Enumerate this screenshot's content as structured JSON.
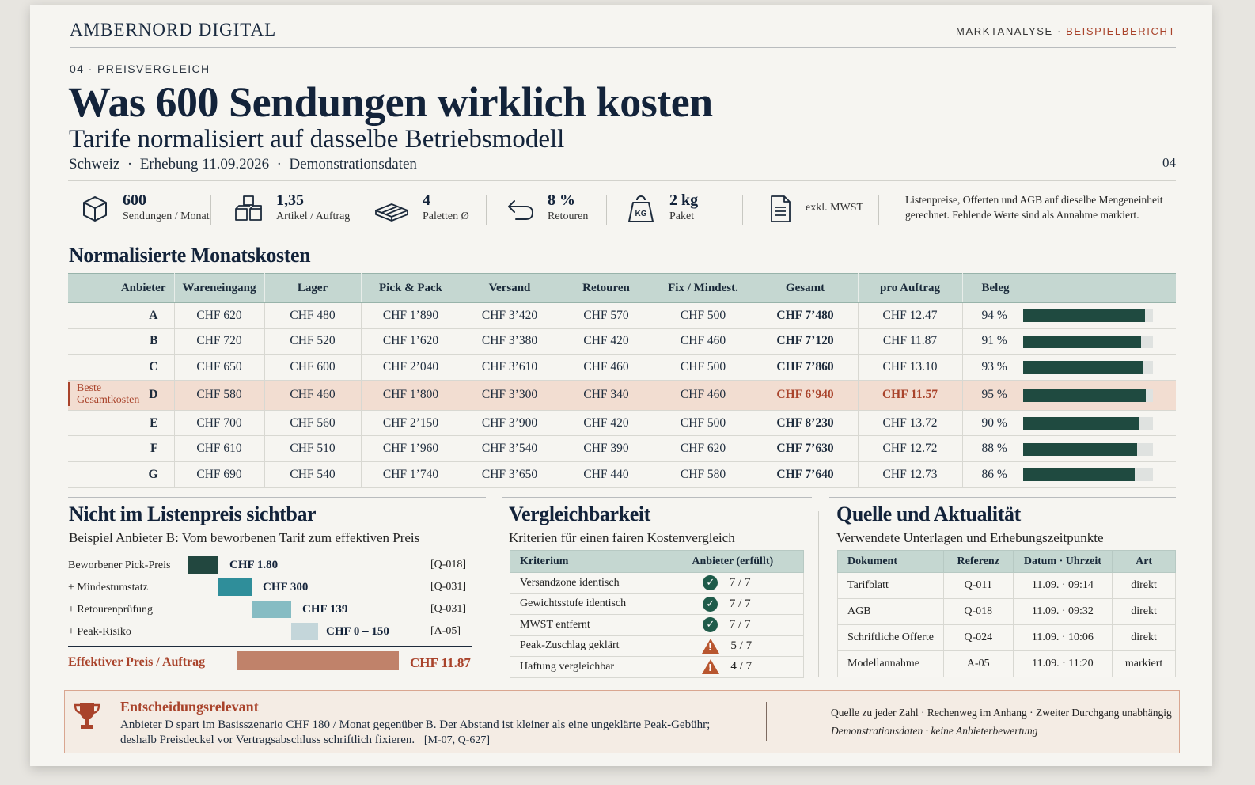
{
  "header": {
    "brand": "AMBERNORD DIGITAL",
    "topright_a": "MARKTANALYSE ·",
    "topright_b": "BEISPIELBERICHT",
    "kicker": "04 · PREISVERGLEICH",
    "title": "Was 600 Sendungen wirklich kosten",
    "subtitle": "Tarife normalisiert auf dasselbe Betriebsmodell",
    "meta": "Schweiz  ·  Erhebung 11.09.2026  ·  Demonstrationsdaten",
    "page": "04"
  },
  "kpis": [
    {
      "icon": "box-icon",
      "value": "600",
      "label": "Sendungen / Monat"
    },
    {
      "icon": "boxes-icon",
      "value": "1,35",
      "label": "Artikel / Auftrag"
    },
    {
      "icon": "pallet-icon",
      "value": "4",
      "label": "Paletten Ø"
    },
    {
      "icon": "return-arrow-icon",
      "value": "8 %",
      "label": "Retouren"
    },
    {
      "icon": "weight-icon",
      "value": "2 kg",
      "label": "Paket"
    },
    {
      "icon": "document-icon",
      "value": "",
      "label": "exkl. MWST"
    }
  ],
  "weight_icon_text": "KG",
  "note": "Listenpreise, Offerten und AGB auf dieselbe Mengeneinheit gerechnet. Fehlende Werte sind als Annahme markiert.",
  "main": {
    "heading": "Normalisierte Monatskosten",
    "columns": [
      "Anbieter",
      "Wareneingang",
      "Lager",
      "Pick & Pack",
      "Versand",
      "Retouren",
      "Fix / Mindest.",
      "Gesamt",
      "pro Auftrag",
      "Beleg"
    ],
    "best_label_1": "Beste",
    "best_label_2": "Gesamtkosten",
    "rows": [
      {
        "anbieter": "A",
        "wareneingang": "CHF 620",
        "lager": "CHF 480",
        "pick": "CHF 1’890",
        "versand": "CHF 3’420",
        "retouren": "CHF 570",
        "fix": "CHF 500",
        "gesamt": "CHF 7’480",
        "pro_auftrag": "CHF 12.47",
        "beleg": "94 %",
        "beleg_value": 0.94
      },
      {
        "anbieter": "B",
        "wareneingang": "CHF 720",
        "lager": "CHF 520",
        "pick": "CHF 1’620",
        "versand": "CHF 3’380",
        "retouren": "CHF 420",
        "fix": "CHF 460",
        "gesamt": "CHF 7’120",
        "pro_auftrag": "CHF 11.87",
        "beleg": "91 %",
        "beleg_value": 0.91
      },
      {
        "anbieter": "C",
        "wareneingang": "CHF 650",
        "lager": "CHF 600",
        "pick": "CHF 2’040",
        "versand": "CHF 3’610",
        "retouren": "CHF 460",
        "fix": "CHF 500",
        "gesamt": "CHF 7’860",
        "pro_auftrag": "CHF 13.10",
        "beleg": "93 %",
        "beleg_value": 0.93
      },
      {
        "anbieter": "D",
        "wareneingang": "CHF 580",
        "lager": "CHF 460",
        "pick": "CHF 1’800",
        "versand": "CHF 3’300",
        "retouren": "CHF 340",
        "fix": "CHF 460",
        "gesamt": "CHF 6’940",
        "pro_auftrag": "CHF 11.57",
        "beleg": "95 %",
        "beleg_value": 0.95
      },
      {
        "anbieter": "E",
        "wareneingang": "CHF 700",
        "lager": "CHF 560",
        "pick": "CHF 2’150",
        "versand": "CHF 3’900",
        "retouren": "CHF 420",
        "fix": "CHF 500",
        "gesamt": "CHF 8’230",
        "pro_auftrag": "CHF 13.72",
        "beleg": "90 %",
        "beleg_value": 0.9
      },
      {
        "anbieter": "F",
        "wareneingang": "CHF 610",
        "lager": "CHF 510",
        "pick": "CHF 1’960",
        "versand": "CHF 3’540",
        "retouren": "CHF 390",
        "fix": "CHF 620",
        "gesamt": "CHF 7’630",
        "pro_auftrag": "CHF 12.72",
        "beleg": "88 %",
        "beleg_value": 0.88
      },
      {
        "anbieter": "G",
        "wareneingang": "CHF 690",
        "lager": "CHF 540",
        "pick": "CHF 1’740",
        "versand": "CHF 3’650",
        "retouren": "CHF 440",
        "fix": "CHF 580",
        "gesamt": "CHF 7’640",
        "pro_auftrag": "CHF 12.73",
        "beleg": "86 %",
        "beleg_value": 0.86
      }
    ]
  },
  "hidden": {
    "heading": "Nicht im Listenpreis sichtbar",
    "sub": "Beispiel Anbieter B: Vom beworbenen Tarif zum effektiven Preis",
    "steps": [
      {
        "label": "Beworbener Pick-Preis",
        "value": "CHF 1.80",
        "ref": "[Q-018]",
        "color": "#22473f"
      },
      {
        "label": "+ Mindestumstatz",
        "value": "CHF 300",
        "ref": "[Q-031]",
        "color": "#2f8e9a"
      },
      {
        "label": "+ Retourenprüfung",
        "value": "CHF 139",
        "ref": "[Q-031]",
        "color": "#86bcc3"
      },
      {
        "label": "+ Peak-Risiko",
        "value": "CHF 0 – 150",
        "ref": "[A-05]",
        "color": "#c4d6da"
      }
    ],
    "effective_label": "Effektiver Preis / Auftrag",
    "effective_value": "CHF 11.87"
  },
  "compare": {
    "heading": "Vergleichbarkeit",
    "sub": "Kriterien für einen fairen Kostenvergleich",
    "columns": [
      "Kriterium",
      "Anbieter (erfüllt)"
    ],
    "rows": [
      {
        "kriterium": "Versandzone identisch",
        "status": "ok",
        "score": "7 / 7"
      },
      {
        "kriterium": "Gewichtsstufe identisch",
        "status": "ok",
        "score": "7 / 7"
      },
      {
        "kriterium": "MWST entfernt",
        "status": "ok",
        "score": "7 / 7"
      },
      {
        "kriterium": "Peak-Zuschlag geklärt",
        "status": "warn",
        "score": "5 / 7"
      },
      {
        "kriterium": "Haftung vergleichbar",
        "status": "warn",
        "score": "4 / 7"
      }
    ]
  },
  "sources": {
    "heading": "Quelle und Aktualität",
    "sub": "Verwendete Unterlagen und Erhebungszeitpunkte",
    "columns": [
      "Dokument",
      "Referenz",
      "Datum · Uhrzeit",
      "Art"
    ],
    "rows": [
      {
        "dokument": "Tarifblatt",
        "referenz": "Q-011",
        "datum": "11.09. · 09:14",
        "art": "direkt"
      },
      {
        "dokument": "AGB",
        "referenz": "Q-018",
        "datum": "11.09. · 09:32",
        "art": "direkt"
      },
      {
        "dokument": "Schriftliche Offerte",
        "referenz": "Q-024",
        "datum": "11.09. · 10:06",
        "art": "direkt"
      },
      {
        "dokument": "Modellannahme",
        "referenz": "A-05",
        "datum": "11.09. · 11:20",
        "art": "markiert"
      }
    ]
  },
  "decision": {
    "title": "Entscheidungsrelevant",
    "text": "Anbieter D spart im Basisszenario CHF 180 / Monat gegenüber B. Der Abstand ist kleiner als eine ungeklärte Peak-Gebühr; deshalb Preisdeckel vor Vertragsabschluss schriftlich fixieren.",
    "refs": "[M-07, Q-627]",
    "side_1": "Quelle zu jeder Zahl · Rechenweg im Anhang · Zweiter Durchgang unabhängig",
    "side_2": "Demonstrationsdaten · keine Anbieterbewertung"
  },
  "colors": {
    "accent": "#a9432b",
    "navy": "#13233a",
    "table_head": "#c5d7d1",
    "bar": "#1f4a40",
    "highlight_row": "#f2ddd1"
  }
}
